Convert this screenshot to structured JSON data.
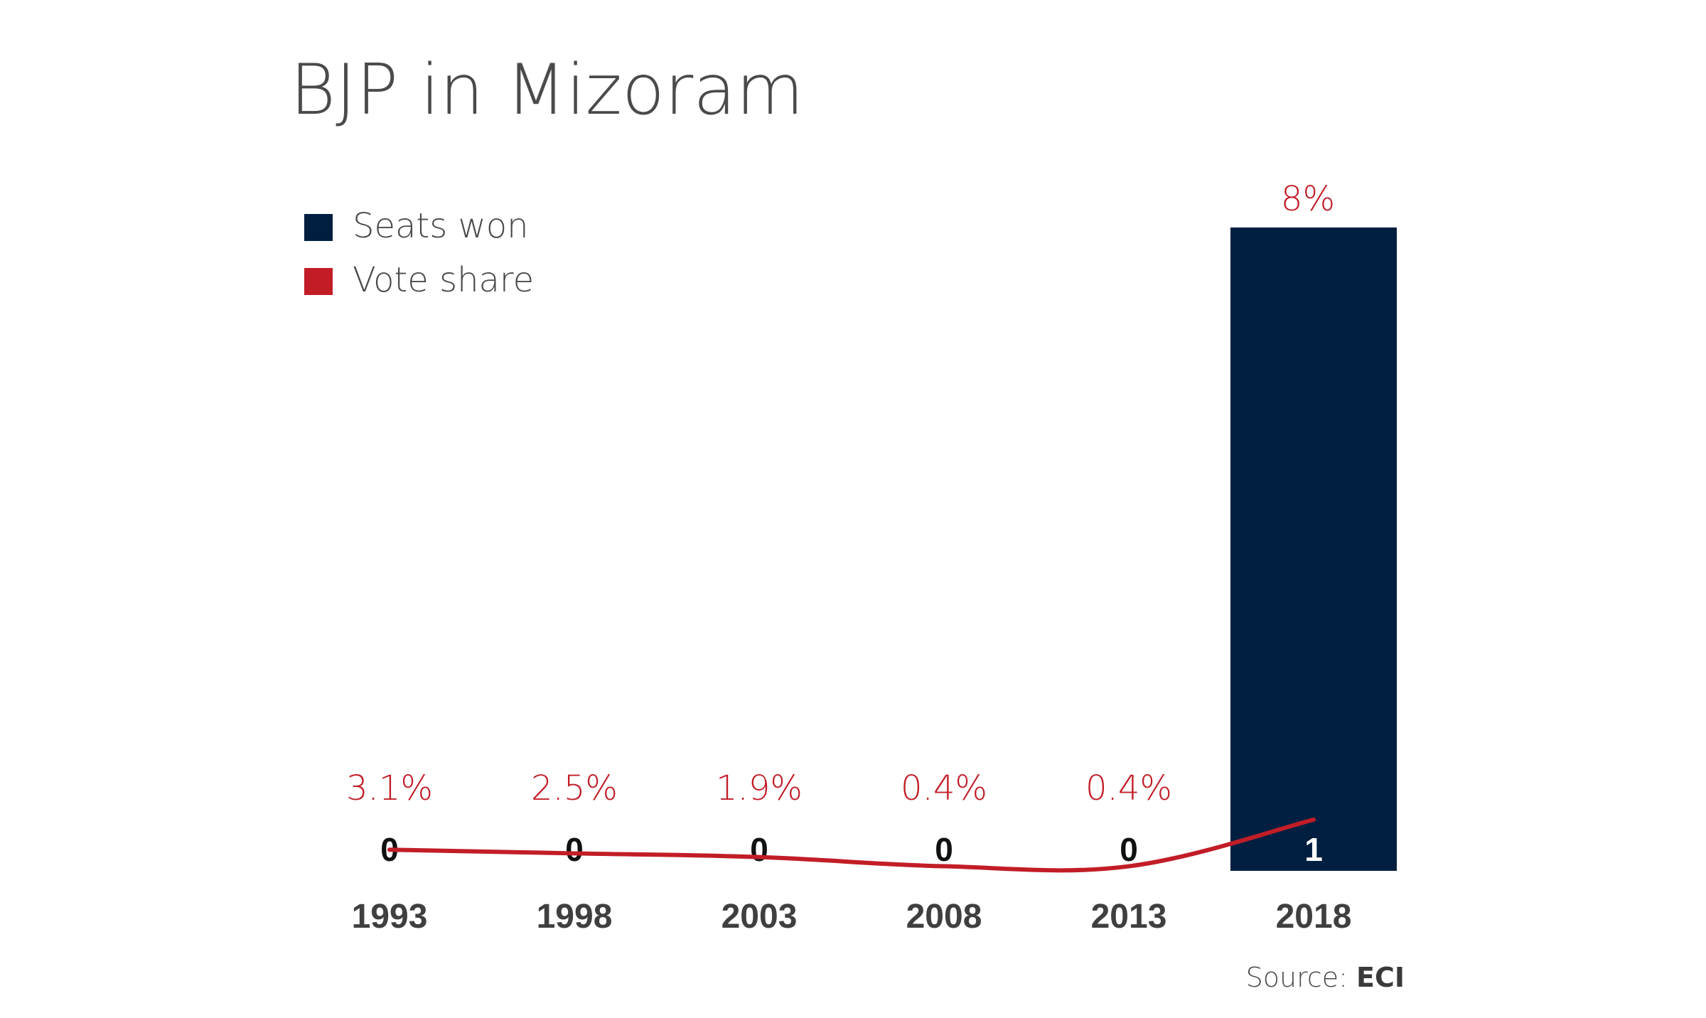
{
  "chart_data": {
    "type": "bar",
    "title": "BJP in Mizoram",
    "categories": [
      "1993",
      "1998",
      "2003",
      "2008",
      "2013",
      "2018"
    ],
    "series": [
      {
        "name": "Seats won",
        "type": "bar",
        "values": [
          0,
          0,
          0,
          0,
          0,
          1
        ],
        "labels": [
          "0",
          "0",
          "0",
          "0",
          "0",
          "1"
        ],
        "color": "#001f40"
      },
      {
        "name": "Vote share",
        "type": "line",
        "values": [
          3.1,
          2.5,
          1.9,
          0.4,
          0.4,
          8
        ],
        "labels": [
          "3.1%",
          "2.5%",
          "1.9%",
          "0.4%",
          "0.4%",
          "8%"
        ],
        "color": "#c21d27"
      }
    ],
    "seats_range": [
      0,
      1
    ],
    "vote_share_range": [
      0,
      8
    ],
    "grid": false,
    "legend": "top-left"
  },
  "legend": {
    "seats_label": "Seats won",
    "vote_label": "Vote share"
  },
  "source": {
    "prefix": "Source: ",
    "name": "ECI"
  },
  "colors": {
    "text": "#4a4a4a",
    "axis_text": "#3f3f3f"
  }
}
